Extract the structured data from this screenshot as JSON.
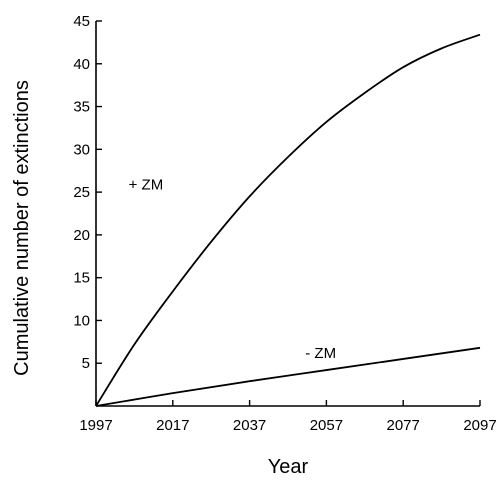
{
  "chart_data": {
    "type": "line",
    "xlabel": "Year",
    "ylabel": "Cumulative number of extinctions",
    "xlim": [
      1997,
      2097
    ],
    "ylim": [
      0,
      45
    ],
    "x_ticks": [
      1997,
      2017,
      2037,
      2057,
      2077,
      2097
    ],
    "y_ticks": [
      5,
      10,
      15,
      20,
      25,
      30,
      35,
      40,
      45
    ],
    "grid": false,
    "series": [
      {
        "name": "+ ZM",
        "x": [
          1997,
          2007,
          2017,
          2027,
          2037,
          2047,
          2057,
          2067,
          2077,
          2087,
          2097
        ],
        "values": [
          0,
          7.2,
          13.4,
          19.2,
          24.5,
          29.1,
          33.2,
          36.6,
          39.6,
          41.8,
          43.4
        ]
      },
      {
        "name": "- ZM",
        "x": [
          1997,
          2017,
          2037,
          2057,
          2077,
          2097
        ],
        "values": [
          0,
          1.5,
          2.9,
          4.2,
          5.5,
          6.8
        ]
      }
    ]
  }
}
